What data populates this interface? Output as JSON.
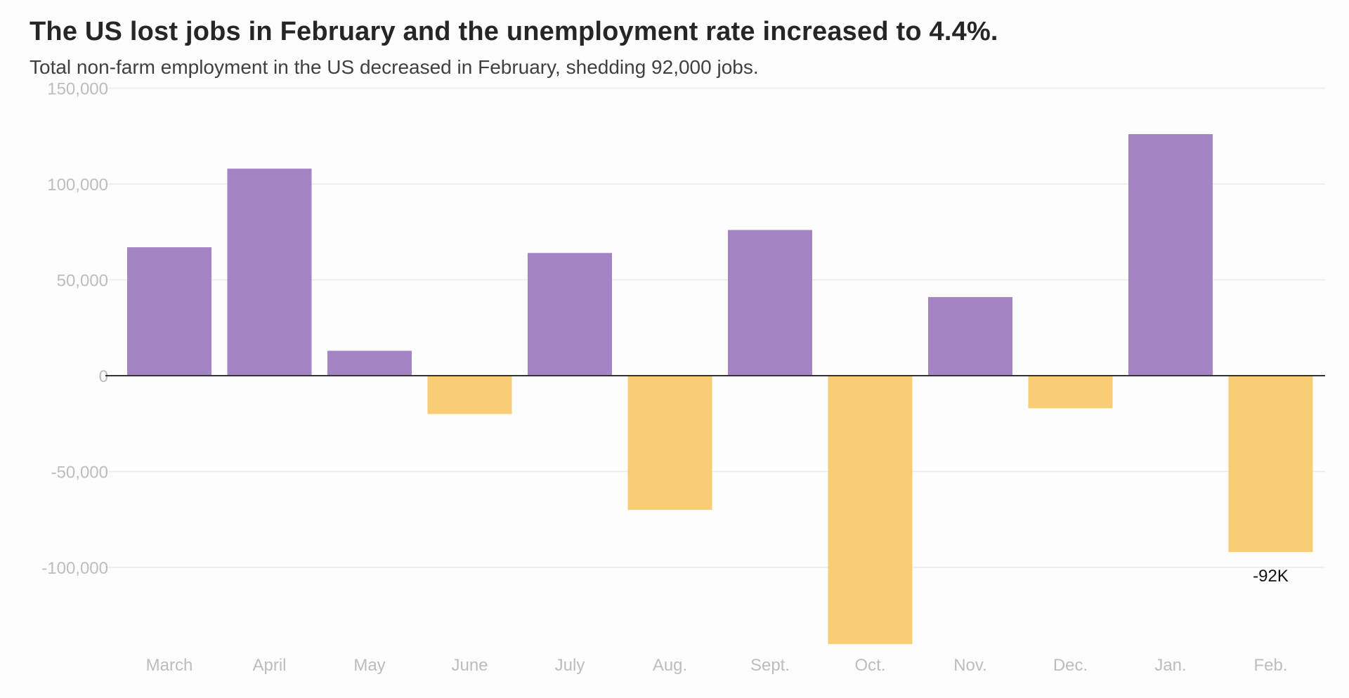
{
  "chart_data": {
    "type": "bar",
    "title": "The US lost jobs in February and the unemployment rate increased to 4.4%.",
    "subtitle": "Total non-farm employment in the US decreased in February, shedding 92,000 jobs.",
    "xlabel": "",
    "ylabel": "",
    "ylim": [
      -150000,
      150000
    ],
    "yticks": [
      150000,
      100000,
      50000,
      0,
      -50000,
      -100000
    ],
    "ytick_labels": [
      "150,000",
      "100,000",
      "50,000",
      "0",
      "-50,000",
      "-100,000"
    ],
    "grid": true,
    "categories": [
      "March",
      "April",
      "May",
      "June",
      "July",
      "Aug.",
      "Sept.",
      "Oct.",
      "Nov.",
      "Dec.",
      "Jan.",
      "Feb."
    ],
    "values": [
      67000,
      108000,
      13000,
      -20000,
      64000,
      -70000,
      76000,
      -140000,
      41000,
      -17000,
      126000,
      -92000
    ],
    "annotations": [
      {
        "category": "Feb.",
        "text": "-92K"
      }
    ],
    "colors": {
      "positive": "#a584c4",
      "negative": "#f8cd76",
      "grid": "#ececec",
      "zero_line": "#333333"
    }
  }
}
